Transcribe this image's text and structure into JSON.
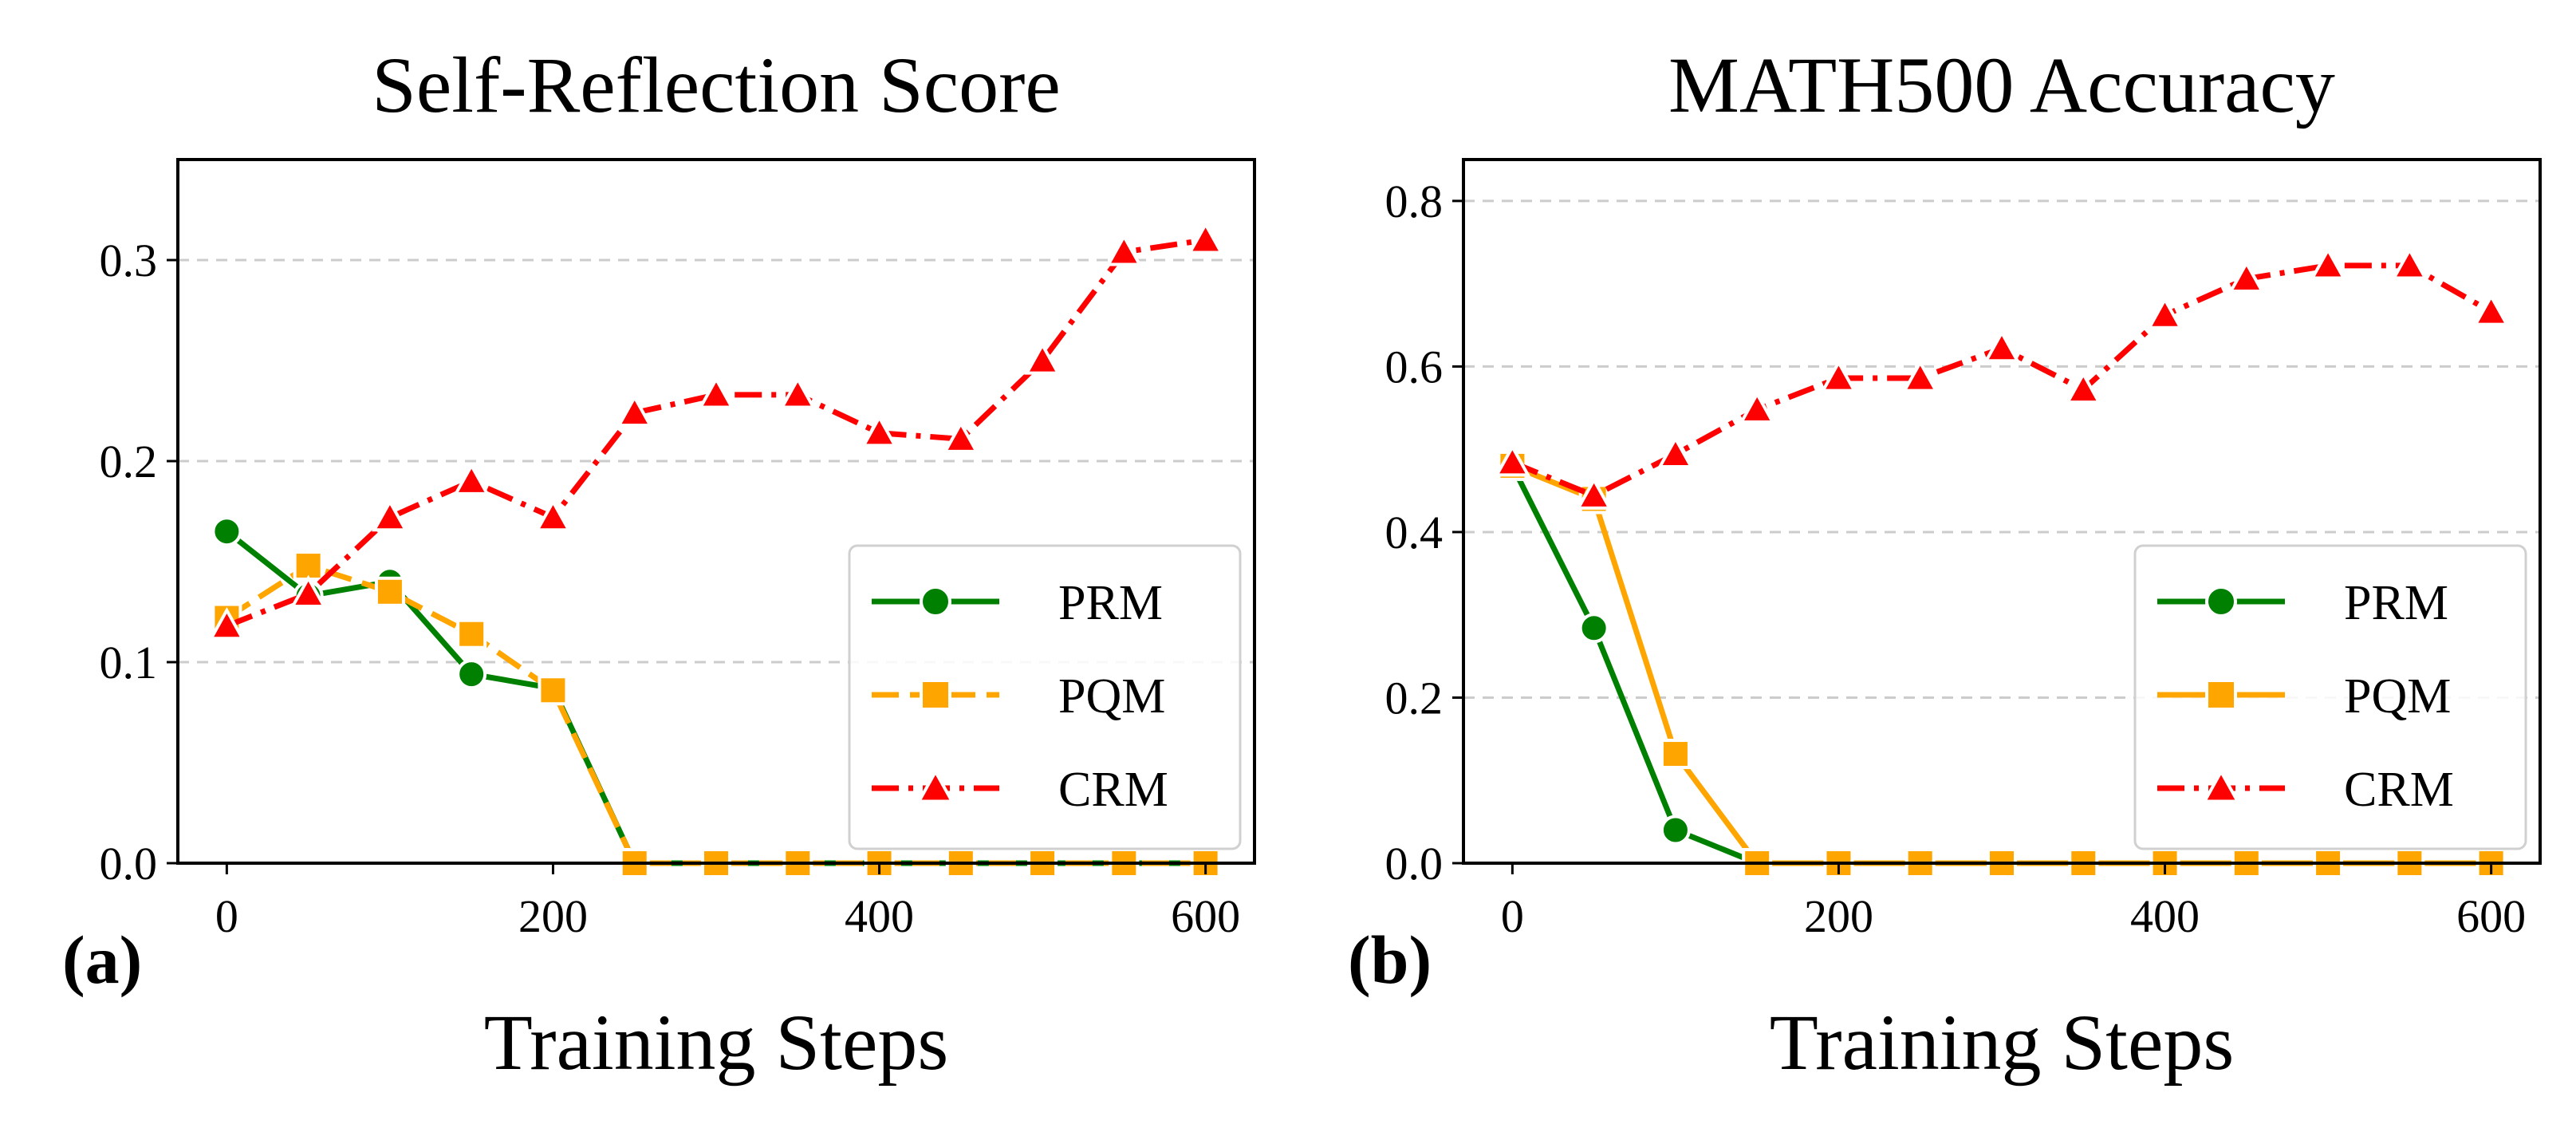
{
  "chart_data": [
    {
      "panel_label": "(a)",
      "type": "line",
      "title": "Self-Reflection Score",
      "xlabel": "Training Steps",
      "ylabel": "",
      "xlim": [
        -30,
        630
      ],
      "ylim": [
        0.0,
        0.35
      ],
      "xticks": [
        0,
        200,
        400,
        600
      ],
      "xtick_labels": [
        "0",
        "200",
        "400",
        "600"
      ],
      "yticks": [
        0.0,
        0.1,
        0.2,
        0.3
      ],
      "ytick_labels": [
        "0.0",
        "0.1",
        "0.2",
        "0.3"
      ],
      "grid": "y-dashed",
      "legend_position": "lower-right",
      "x": [
        0,
        50,
        100,
        150,
        200,
        250,
        300,
        350,
        400,
        450,
        500,
        550,
        600
      ],
      "series": [
        {
          "name": "PRM",
          "color": "#008000",
          "marker": "circle",
          "linestyle": "solid",
          "values": [
            0.165,
            0.133,
            0.14,
            0.094,
            0.087,
            0.0,
            0.0,
            0.0,
            0.0,
            0.0,
            0.0,
            0.0,
            0.0
          ]
        },
        {
          "name": "PQM",
          "color": "#FFA500",
          "marker": "square",
          "linestyle": "dashed",
          "values": [
            0.122,
            0.148,
            0.135,
            0.114,
            0.086,
            0.0,
            0.0,
            0.0,
            0.0,
            0.0,
            0.0,
            0.0,
            0.0
          ]
        },
        {
          "name": "CRM",
          "color": "#FF0000",
          "marker": "triangle",
          "linestyle": "dashdot",
          "values": [
            0.118,
            0.134,
            0.172,
            0.19,
            0.172,
            0.224,
            0.233,
            0.233,
            0.214,
            0.211,
            0.25,
            0.304,
            0.31
          ]
        }
      ]
    },
    {
      "panel_label": "(b)",
      "type": "line",
      "title": "MATH500 Accuracy",
      "xlabel": "Training Steps",
      "ylabel": "",
      "xlim": [
        -30,
        630
      ],
      "ylim": [
        0.0,
        0.85
      ],
      "xticks": [
        0,
        200,
        400,
        600
      ],
      "xtick_labels": [
        "0",
        "200",
        "400",
        "600"
      ],
      "yticks": [
        0.0,
        0.2,
        0.4,
        0.6,
        0.8
      ],
      "ytick_labels": [
        "0.0",
        "0.2",
        "0.4",
        "0.6",
        "0.8"
      ],
      "grid": "y-dashed",
      "legend_position": "lower-right",
      "x": [
        0,
        50,
        100,
        150,
        200,
        250,
        300,
        350,
        400,
        450,
        500,
        550,
        600
      ],
      "series": [
        {
          "name": "PRM",
          "color": "#008000",
          "marker": "circle",
          "linestyle": "solid",
          "values": [
            0.48,
            0.284,
            0.04,
            0.0,
            0.0,
            0.0,
            0.0,
            0.0,
            0.0,
            0.0,
            0.0,
            0.0,
            0.0
          ]
        },
        {
          "name": "PQM",
          "color": "#FFA500",
          "marker": "square",
          "linestyle": "solid",
          "values": [
            0.48,
            0.44,
            0.132,
            0.0,
            0.0,
            0.0,
            0.0,
            0.0,
            0.0,
            0.0,
            0.0,
            0.0,
            0.0
          ]
        },
        {
          "name": "CRM",
          "color": "#FF0000",
          "marker": "triangle",
          "linestyle": "dashdot",
          "values": [
            0.484,
            0.444,
            0.494,
            0.548,
            0.586,
            0.586,
            0.622,
            0.572,
            0.662,
            0.706,
            0.722,
            0.722,
            0.666
          ]
        }
      ]
    }
  ]
}
